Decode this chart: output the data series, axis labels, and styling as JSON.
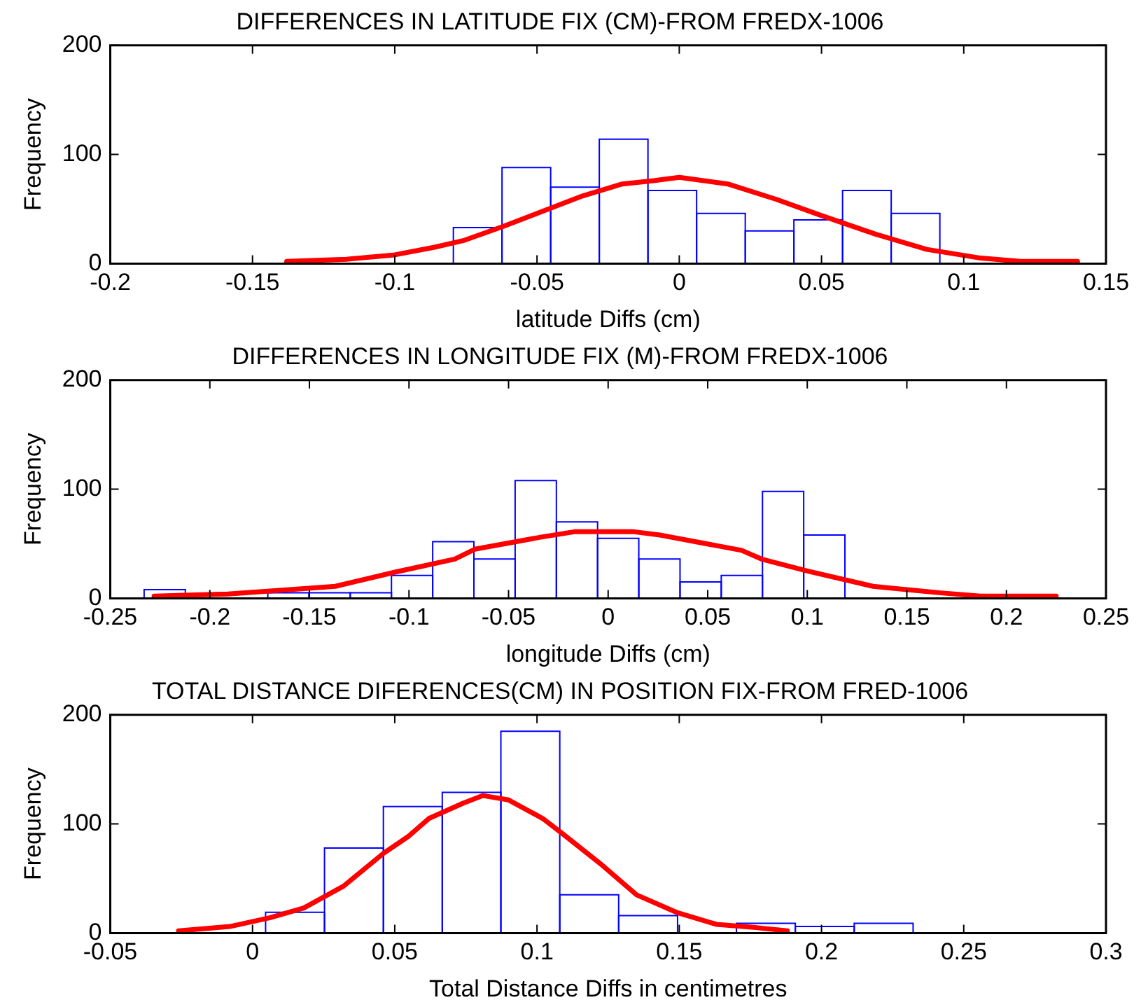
{
  "chart_data": [
    {
      "type": "histogram",
      "title": "DIFFERENCES IN LATITUDE FIX (CM)-FROM FREDX-1006",
      "xlabel": "latitude Diffs (cm)",
      "ylabel": "Frequency",
      "xlim": [
        -0.2,
        0.15
      ],
      "xticks": [
        -0.2,
        -0.15,
        -0.1,
        -0.05,
        0,
        0.05,
        0.1,
        0.15
      ],
      "ylim": [
        0,
        200
      ],
      "yticks": [
        0,
        100,
        200
      ],
      "grid": false,
      "legend": false,
      "series": [
        {
          "type": "histogram",
          "color": "#0000ff",
          "bins": [
            -0.0794,
            -0.0623,
            -0.0452,
            -0.0281,
            -0.011,
            0.0061,
            0.0232,
            0.0403,
            0.0574,
            0.0745,
            0.0916
          ],
          "values": [
            33,
            88,
            70,
            114,
            67,
            46,
            30,
            40,
            67,
            46
          ]
        },
        {
          "type": "line",
          "color": "#ff0000",
          "x": [
            -0.138,
            -0.117,
            -0.1,
            -0.086,
            -0.076,
            -0.062,
            -0.046,
            -0.034,
            -0.02,
            -0.009,
            0,
            0.017,
            0.034,
            0.05,
            0.069,
            0.087,
            0.106,
            0.12,
            0.14
          ],
          "values": [
            2,
            4,
            8,
            15,
            21,
            34,
            50,
            62,
            73,
            76,
            79,
            73,
            59,
            44,
            27,
            13,
            5,
            2,
            2
          ]
        }
      ]
    },
    {
      "type": "histogram",
      "title": "DIFFERENCES IN LONGITUDE FIX (M)-FROM FREDX-1006",
      "xlabel": "longitude Diffs (cm)",
      "ylabel": "Frequency",
      "xlim": [
        -0.25,
        0.25
      ],
      "xticks": [
        -0.25,
        -0.2,
        -0.15,
        -0.1,
        -0.05,
        0,
        0.05,
        0.1,
        0.15,
        0.2,
        0.25
      ],
      "ylim": [
        0,
        200
      ],
      "yticks": [
        0,
        100,
        200
      ],
      "grid": false,
      "legend": false,
      "series": [
        {
          "type": "histogram",
          "color": "#0000ff",
          "bins": [
            -0.233,
            -0.2123,
            -0.1916,
            -0.1709,
            -0.1502,
            -0.1295,
            -0.1088,
            -0.0881,
            -0.0674,
            -0.0467,
            -0.026,
            -0.0053,
            0.0154,
            0.0361,
            0.0568,
            0.0775,
            0.0982,
            0.1189
          ],
          "values": [
            8,
            null,
            null,
            5,
            5,
            5,
            21,
            52,
            36,
            108,
            70,
            55,
            36,
            15,
            21,
            98,
            58
          ]
        },
        {
          "type": "line",
          "color": "#ff0000",
          "x": [
            -0.228,
            -0.191,
            -0.16,
            -0.137,
            -0.107,
            -0.077,
            -0.067,
            -0.034,
            -0.017,
            0.013,
            0.026,
            0.067,
            0.077,
            0.1,
            0.133,
            0.15,
            0.167,
            0.187,
            0.225
          ],
          "values": [
            2,
            4,
            8,
            11,
            24,
            36,
            45,
            56,
            61,
            61,
            58,
            44,
            36,
            25,
            11,
            8,
            5,
            2,
            2
          ]
        }
      ]
    },
    {
      "type": "histogram",
      "title": "TOTAL DISTANCE DIFERENCES(CM) IN POSITION FIX-FROM FRED-1006",
      "xlabel": "Total Distance Diffs in centimetres",
      "ylabel": "Frequency",
      "xlim": [
        -0.05,
        0.3
      ],
      "xticks": [
        -0.05,
        0,
        0.05,
        0.1,
        0.15,
        0.2,
        0.25,
        0.3
      ],
      "ylim": [
        0,
        200
      ],
      "yticks": [
        0,
        100,
        200
      ],
      "grid": false,
      "legend": false,
      "series": [
        {
          "type": "histogram",
          "color": "#0000ff",
          "bins": [
            0.0046,
            0.0253,
            0.046,
            0.0667,
            0.0873,
            0.108,
            0.1287,
            0.1494,
            0.1701,
            0.1908,
            0.2115,
            0.2322
          ],
          "values": [
            19,
            78,
            116,
            129,
            185,
            35,
            16,
            null,
            9,
            6,
            9
          ]
        },
        {
          "type": "line",
          "color": "#ff0000",
          "x": [
            -0.026,
            -0.008,
            0.006,
            0.018,
            0.032,
            0.046,
            0.055,
            0.062,
            0.074,
            0.081,
            0.09,
            0.102,
            0.109,
            0.123,
            0.135,
            0.149,
            0.163,
            0.177,
            0.188
          ],
          "values": [
            2,
            6,
            14,
            23,
            43,
            73,
            89,
            105,
            119,
            126,
            122,
            105,
            91,
            62,
            35,
            19,
            8,
            5,
            2
          ]
        }
      ]
    }
  ]
}
